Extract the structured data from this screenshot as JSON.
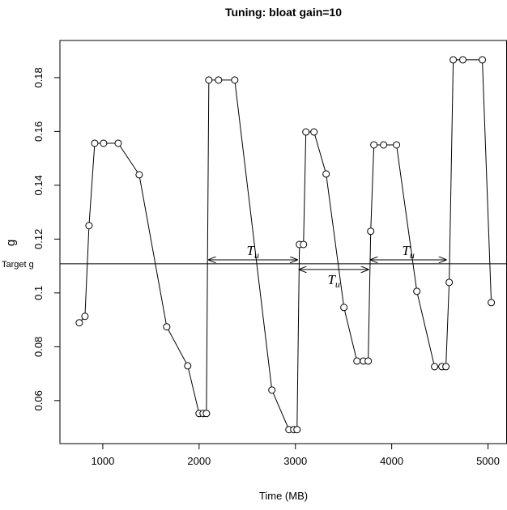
{
  "chart_data": {
    "type": "line",
    "title": "Tuning: bloat gain=10",
    "x_label": "Time (MB)",
    "y_label": "g",
    "x": [
      756,
      815,
      857,
      916,
      1008,
      1160,
      1378,
      1664,
      1882,
      2000,
      2042,
      2076,
      2101,
      2202,
      2370,
      2756,
      2933,
      2983,
      3017,
      3042,
      3084,
      3109,
      3193,
      3319,
      3504,
      3639,
      3706,
      3756,
      3782,
      3815,
      3916,
      4050,
      4261,
      4445,
      4521,
      4563,
      4597,
      4639,
      4739,
      4941,
      5034
    ],
    "series": [
      {
        "color": "#000000",
        "values": [
          0.0889,
          0.0913,
          0.125,
          0.1556,
          0.1556,
          0.1556,
          0.1439,
          0.0874,
          0.0729,
          0.0552,
          0.0552,
          0.0552,
          0.1791,
          0.1791,
          0.1791,
          0.0639,
          0.0492,
          0.0492,
          0.0492,
          0.118,
          0.118,
          0.1598,
          0.1598,
          0.1442,
          0.0946,
          0.0747,
          0.0747,
          0.0747,
          0.1229,
          0.155,
          0.155,
          0.155,
          0.1006,
          0.0726,
          0.0726,
          0.0726,
          0.1039,
          0.1866,
          0.1866,
          0.1866,
          0.0964
        ]
      }
    ],
    "xlim": [
      555,
      5193
    ],
    "ylim": [
      0.044,
      0.1938
    ],
    "xticks": [
      1000,
      2000,
      3000,
      4000,
      5000
    ],
    "yticks": [
      0.06,
      0.08,
      0.1,
      0.12,
      0.14,
      0.16,
      0.18
    ],
    "hline": {
      "value": 0.1108,
      "label": "Target g"
    },
    "annotations": [
      {
        "text": "T",
        "sub": "u",
        "x0": 2101,
        "x1": 3017,
        "y": 0.1123
      },
      {
        "text": "T",
        "sub": "u",
        "x0": 3042,
        "x1": 3756,
        "y": 0.1087
      },
      {
        "text": "T",
        "sub": "u",
        "x0": 3782,
        "x1": 4563,
        "y": 0.1123
      }
    ]
  }
}
